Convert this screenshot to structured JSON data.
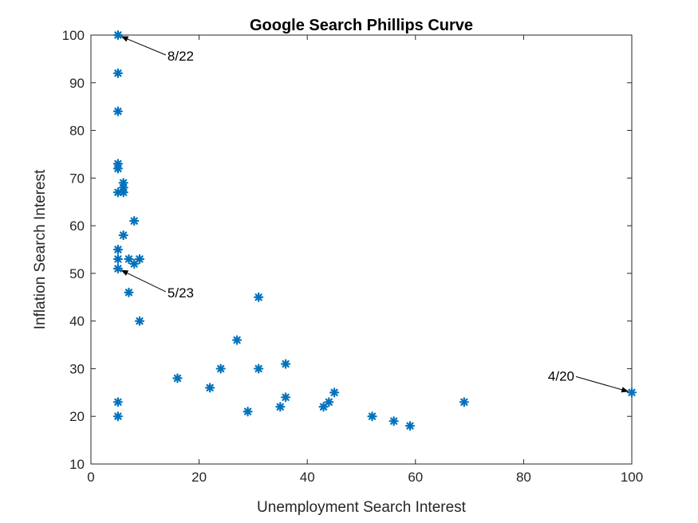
{
  "chart_data": {
    "type": "scatter",
    "title": "Google Search Phillips Curve",
    "xlabel": "Unemployment Search Interest",
    "ylabel": "Inflation Search Interest",
    "xlim": [
      0,
      100
    ],
    "ylim": [
      10,
      100
    ],
    "xticks": [
      "0",
      "20",
      "40",
      "60",
      "80",
      "100"
    ],
    "yticks": [
      "10",
      "20",
      "30",
      "40",
      "50",
      "60",
      "70",
      "80",
      "90",
      "100"
    ],
    "grid": false,
    "marker": "asterisk",
    "marker_color": "#0072BD",
    "points": [
      {
        "x": 5,
        "y": 100
      },
      {
        "x": 5,
        "y": 92
      },
      {
        "x": 5,
        "y": 84
      },
      {
        "x": 5,
        "y": 73
      },
      {
        "x": 5,
        "y": 72
      },
      {
        "x": 6,
        "y": 69
      },
      {
        "x": 6,
        "y": 68
      },
      {
        "x": 5,
        "y": 67
      },
      {
        "x": 6,
        "y": 67
      },
      {
        "x": 8,
        "y": 61
      },
      {
        "x": 6,
        "y": 58
      },
      {
        "x": 5,
        "y": 55
      },
      {
        "x": 5,
        "y": 53
      },
      {
        "x": 7,
        "y": 53
      },
      {
        "x": 8,
        "y": 52
      },
      {
        "x": 9,
        "y": 53
      },
      {
        "x": 5,
        "y": 51
      },
      {
        "x": 7,
        "y": 46
      },
      {
        "x": 9,
        "y": 40
      },
      {
        "x": 5,
        "y": 23
      },
      {
        "x": 5,
        "y": 20
      },
      {
        "x": 16,
        "y": 28
      },
      {
        "x": 22,
        "y": 26
      },
      {
        "x": 24,
        "y": 30
      },
      {
        "x": 27,
        "y": 36
      },
      {
        "x": 29,
        "y": 21
      },
      {
        "x": 31,
        "y": 45
      },
      {
        "x": 31,
        "y": 30
      },
      {
        "x": 35,
        "y": 22
      },
      {
        "x": 36,
        "y": 31
      },
      {
        "x": 36,
        "y": 24
      },
      {
        "x": 43,
        "y": 22
      },
      {
        "x": 44,
        "y": 23
      },
      {
        "x": 45,
        "y": 25
      },
      {
        "x": 52,
        "y": 20
      },
      {
        "x": 56,
        "y": 19
      },
      {
        "x": 59,
        "y": 18
      },
      {
        "x": 69,
        "y": 23
      },
      {
        "x": 100,
        "y": 25
      }
    ],
    "annotations": [
      {
        "text": "8/22",
        "x": 5,
        "y": 100
      },
      {
        "text": "5/23",
        "x": 5,
        "y": 51
      },
      {
        "text": "4/20",
        "x": 100,
        "y": 25
      }
    ]
  }
}
